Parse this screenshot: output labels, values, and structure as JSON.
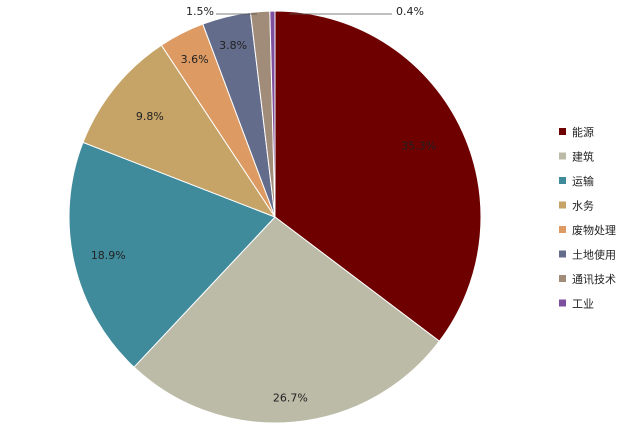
{
  "chart_data": {
    "type": "pie",
    "title": "",
    "legend_position": "right",
    "categories": [
      "能源",
      "建筑",
      "运输",
      "水务",
      "废物处理",
      "土地使用",
      "通讯技术",
      "工业"
    ],
    "values": [
      35.3,
      26.7,
      18.9,
      9.8,
      3.6,
      3.8,
      1.5,
      0.4
    ],
    "value_labels": [
      "35.3%",
      "26.7%",
      "18.9%",
      "9.8%",
      "3.6%",
      "3.8%",
      "1.5%",
      "0.4%"
    ],
    "colors": [
      "#6e0000",
      "#bcbba8",
      "#3f8b9c",
      "#c6a468",
      "#dd9b63",
      "#646c8c",
      "#a08c78",
      "#7e4f9e"
    ]
  }
}
